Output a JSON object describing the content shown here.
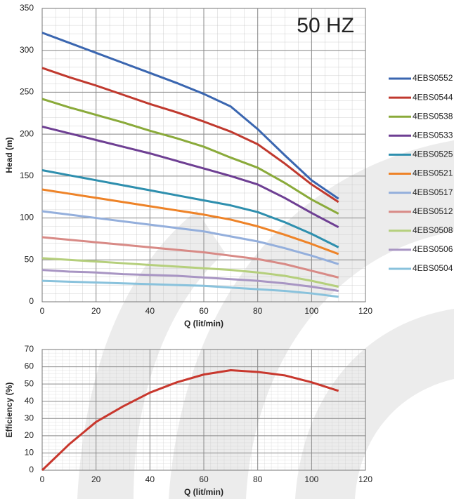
{
  "chart_data": [
    {
      "type": "line",
      "annotation": "50 HZ",
      "xlabel": "Q (lit/min)",
      "ylabel": "Head (m)",
      "x": [
        0,
        10,
        20,
        30,
        40,
        50,
        60,
        70,
        80,
        90,
        100,
        110
      ],
      "xlim": [
        0,
        120
      ],
      "xticks": [
        0,
        20,
        40,
        60,
        80,
        100,
        120
      ],
      "ylim": [
        0,
        350
      ],
      "yticks": [
        0,
        50,
        100,
        150,
        200,
        250,
        300,
        350
      ],
      "grid": true,
      "legend": "right",
      "series": [
        {
          "name": "4EBS0552",
          "color": "#3a66b0",
          "values": [
            321,
            309,
            297,
            285,
            273,
            261,
            248,
            233,
            206,
            175,
            145,
            123
          ]
        },
        {
          "name": "4EBS0544",
          "color": "#c0392e",
          "values": [
            279,
            268,
            258,
            247,
            236,
            226,
            215,
            203,
            188,
            165,
            140,
            119
          ]
        },
        {
          "name": "4EBS0538",
          "color": "#8aaa3a",
          "values": [
            242,
            232,
            223,
            214,
            204,
            195,
            185,
            172,
            160,
            142,
            122,
            105
          ]
        },
        {
          "name": "4EBS0533",
          "color": "#6e3f93",
          "values": [
            209,
            201,
            193,
            185,
            177,
            168,
            159,
            150,
            140,
            124,
            106,
            89
          ]
        },
        {
          "name": "4EBS0525",
          "color": "#2e8fae",
          "values": [
            157,
            151,
            145,
            139,
            133,
            127,
            121,
            115,
            107,
            95,
            81,
            65
          ]
        },
        {
          "name": "4EBS0521",
          "color": "#ee8328",
          "values": [
            134,
            129,
            124,
            119,
            114,
            109,
            104,
            98,
            90,
            80,
            69,
            57
          ]
        },
        {
          "name": "4EBS0517",
          "color": "#94afdc",
          "values": [
            108,
            104,
            100,
            96,
            92,
            88,
            84,
            78,
            72,
            64,
            55,
            45
          ]
        },
        {
          "name": "4EBS0512",
          "color": "#d88a86",
          "values": [
            77,
            74,
            71,
            68,
            65,
            62,
            59,
            55,
            51,
            45,
            37,
            29
          ]
        },
        {
          "name": "4EBS0508",
          "color": "#b5cf7c",
          "values": [
            52,
            50,
            48,
            46,
            44,
            42,
            40,
            38,
            35,
            31,
            25,
            18
          ]
        },
        {
          "name": "4EBS0506",
          "color": "#a895c3",
          "values": [
            38,
            36,
            35,
            33,
            32,
            31,
            29,
            27,
            25,
            22,
            18,
            13
          ]
        },
        {
          "name": "4EBS0504",
          "color": "#89c2dc",
          "values": [
            25,
            24,
            23,
            22,
            21,
            20,
            19,
            17,
            15,
            13,
            10,
            6
          ]
        }
      ]
    },
    {
      "type": "line",
      "xlabel": "Q (lit/min)",
      "ylabel": "Efficiency (%)",
      "x": [
        0,
        10,
        20,
        30,
        40,
        50,
        60,
        70,
        80,
        90,
        100,
        110
      ],
      "values": [
        0,
        15,
        28,
        37,
        45,
        51,
        55.5,
        58,
        57,
        55,
        51,
        46
      ],
      "color": "#c8372d",
      "xlim": [
        0,
        120
      ],
      "xticks": [
        0,
        20,
        40,
        60,
        80,
        100,
        120
      ],
      "ylim": [
        0,
        70
      ],
      "yticks": [
        0,
        10,
        20,
        30,
        40,
        50,
        60,
        70
      ],
      "grid": true
    }
  ]
}
